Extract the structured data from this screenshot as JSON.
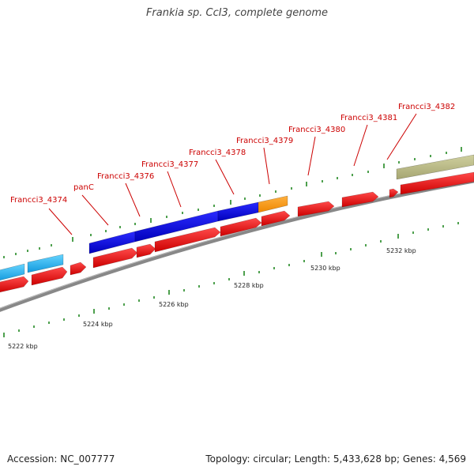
{
  "title": "Frankia sp. CcI3, complete genome",
  "footer": {
    "accession": "Accession: NC_007777",
    "summary": "Topology: circular; Length: 5,433,628 bp; Genes: 4,569"
  },
  "colors": {
    "cds": "#ee1111",
    "cluster_blue": "#1111dd",
    "cluster_cyan": "#33bbee",
    "cluster_orange": "#ff9911",
    "cluster_olive": "#bbbb88",
    "label": "#cc0000",
    "tick": "#228822",
    "backbone": "#888888"
  },
  "gene_labels": [
    {
      "text": "Francci3_4374"
    },
    {
      "text": "panC"
    },
    {
      "text": "Francci3_4376"
    },
    {
      "text": "Francci3_4377"
    },
    {
      "text": "Francci3_4378"
    },
    {
      "text": "Francci3_4379"
    },
    {
      "text": "Francci3_4380"
    },
    {
      "text": "Francci3_4381"
    },
    {
      "text": "Francci3_4382"
    }
  ],
  "scale_labels": [
    {
      "text": "5222 kbp"
    },
    {
      "text": "5224 kbp"
    },
    {
      "text": "5226 kbp"
    },
    {
      "text": "5228 kbp"
    },
    {
      "text": "5230 kbp"
    },
    {
      "text": "5232 kbp"
    }
  ]
}
